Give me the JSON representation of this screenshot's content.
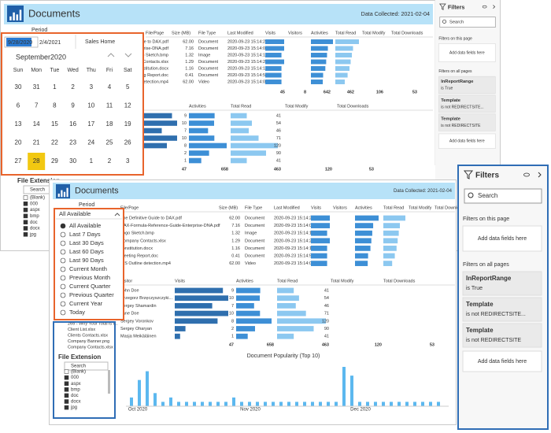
{
  "report": {
    "title": "Documents",
    "data_collected": "Data Collected: 2021-02-04",
    "period_label": "Period",
    "start_date": "9/28/2020",
    "end_date": "2/4/2021",
    "page_link": "Sales Home",
    "files_table": {
      "columns": [
        "File/Page",
        "Size (MB)",
        "File Type",
        "Last Modified",
        "Visits",
        "Visitors",
        "Activities",
        "Total Read",
        "Total Modify",
        "Total Downloads"
      ],
      "rows": [
        {
          "name": "The Definitive Guide to DAX.pdf",
          "size": "62.00",
          "type": "Document",
          "modified": "2020-09-23 15:14:21"
        },
        {
          "name": "DAX-Formula-Reference-Guide-Enterprise-DNA.pdf",
          "size": "7.16",
          "type": "Document",
          "modified": "2020-09-23 15:14:03"
        },
        {
          "name": "Logo Sketch.bmp",
          "size": "1.32",
          "type": "Image",
          "modified": "2020-09-23 15:14:15"
        },
        {
          "name": "Company Contacts.xlsx",
          "size": "1.29",
          "type": "Document",
          "modified": "2020-09-23 15:14:23"
        },
        {
          "name": "constitution.docx",
          "size": "1.16",
          "type": "Document",
          "modified": "2020-09-23 15:14:15"
        },
        {
          "name": "Meeting Report.doc",
          "size": "0.41",
          "type": "Document",
          "modified": "2020-09-23 15:14:51"
        },
        {
          "name": "ISS Outline detection.mp4",
          "size": "62.00",
          "type": "Video",
          "modified": "2020-09-23 15:14:08"
        }
      ],
      "visits": [
        7,
        7,
        6,
        7,
        6,
        6,
        6
      ],
      "activities": [
        130,
        100,
        95,
        90,
        85,
        72,
        70
      ],
      "total_read": [
        100,
        75,
        70,
        65,
        60,
        52,
        40
      ],
      "totals": [
        45,
        8,
        642,
        462,
        106,
        53
      ]
    },
    "visitor_table": {
      "columns": [
        "Visitor",
        "Visits",
        "Activities",
        "Total Read",
        "Total Modify",
        "Total Downloads"
      ],
      "names": [
        "John Doe",
        "Grzegorz Brzęczyszczyki...",
        "Sergey Shamardin",
        "Jane Doe",
        "Sergey Voronkov",
        "Sergey Oharyan",
        "Masja Meikäläinen"
      ],
      "visits": [
        9,
        10,
        7,
        10,
        8,
        2,
        1
      ],
      "activities": [
        102,
        100,
        76,
        101,
        150,
        80,
        49
      ],
      "total_read": [
        41,
        54,
        46,
        71,
        120,
        90,
        41
      ],
      "totals": [
        47,
        658,
        463,
        120,
        53
      ]
    },
    "file_list": [
      "265 - Why Your Total is I...",
      "Client List.xlsx",
      "Clients Contacts.xlsx",
      "Company Banner.png",
      "Company Contacts.xlsx"
    ],
    "file_extension": {
      "title": "File Extension",
      "search": "Search",
      "items": [
        "(Blank)",
        "000",
        "aspx",
        "bmp",
        "doc",
        "docx",
        "jpg"
      ]
    },
    "popularity": {
      "type": "bar",
      "title": "Document Popularity (Top 10)",
      "x_labels": [
        "Oct 2020",
        "Nov 2020",
        "Dec 2020"
      ],
      "values": [
        2,
        6,
        8,
        3,
        1,
        2,
        1,
        1,
        1,
        1,
        1,
        1,
        1,
        2,
        1,
        1,
        1,
        1,
        1,
        1,
        1,
        1,
        1,
        1,
        1,
        1,
        1,
        9,
        7,
        1,
        1,
        1,
        1,
        1,
        1,
        1,
        1,
        1,
        1,
        1
      ]
    }
  },
  "calendar": {
    "month": "September2020",
    "weekdays": [
      "Sun",
      "Mon",
      "Tue",
      "Wed",
      "Thu",
      "Fri",
      "Sat"
    ],
    "days": [
      30,
      31,
      1,
      2,
      3,
      4,
      5,
      6,
      7,
      8,
      9,
      10,
      11,
      12,
      13,
      14,
      15,
      16,
      17,
      18,
      19,
      20,
      21,
      22,
      23,
      24,
      25,
      26,
      27,
      28,
      29,
      30,
      1,
      2,
      3
    ],
    "selected": 28
  },
  "period_options": {
    "current": "All Available",
    "options": [
      "All Available",
      "Last 7 Days",
      "Last 30 Days",
      "Last 60 Days",
      "Last 90 Days",
      "Current Month",
      "Previous Month",
      "Current Quarter",
      "Previous Quarter",
      "Current Year",
      "Today"
    ]
  },
  "filters": {
    "title": "Filters",
    "search": "Search",
    "this_page": "Filters on this page",
    "add_fields": "Add data fields here",
    "all_pages": "Filters on all pages",
    "cards": [
      {
        "field": "InReportRange",
        "condition": "is True"
      },
      {
        "field": "Template",
        "condition": "is not REDIRECTSITE..."
      },
      {
        "field": "Template",
        "condition": "is not REDIRECTSITE"
      }
    ]
  }
}
